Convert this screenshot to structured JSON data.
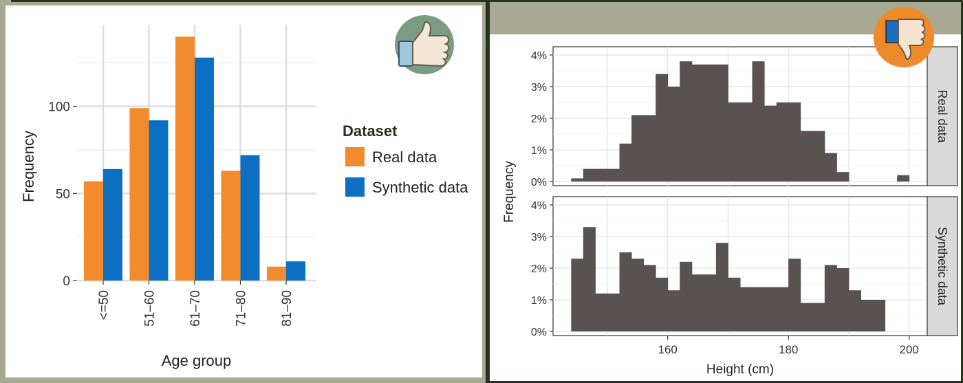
{
  "left_chart": {
    "chart_data": {
      "type": "bar",
      "categories": [
        "<=50",
        "51–60",
        "61–70",
        "71–80",
        "81–90"
      ],
      "series": [
        {
          "name": "Real data",
          "values": [
            57,
            99,
            140,
            63,
            8
          ],
          "color": "#f28a2e"
        },
        {
          "name": "Synthetic data",
          "values": [
            64,
            92,
            128,
            72,
            11
          ],
          "color": "#0d6fc2"
        }
      ],
      "xlabel": "Age group",
      "ylabel": "Frequency",
      "ylim": [
        0,
        150
      ],
      "yticks": [
        0,
        50,
        100
      ],
      "legend_title": "Dataset",
      "legend_position": "right",
      "grid": true
    },
    "badge_icon": "thumbs-up-icon"
  },
  "right_chart": {
    "chart_data": {
      "type": "bar",
      "subtype": "histogram",
      "xlabel": "Height (cm)",
      "ylabel": "Frequency",
      "xlim": [
        141,
        203
      ],
      "xticks": [
        160,
        180,
        200
      ],
      "ylim": [
        0,
        4
      ],
      "yticks": [
        "0%",
        "1%",
        "2%",
        "3%",
        "4%"
      ],
      "facets": [
        {
          "name": "Real data",
          "bin_starts": [
            144,
            146,
            148,
            150,
            152,
            154,
            156,
            158,
            160,
            162,
            164,
            166,
            168,
            170,
            172,
            174,
            176,
            178,
            180,
            182,
            184,
            186,
            188,
            190,
            192,
            194,
            196,
            198
          ],
          "values": [
            0.1,
            0.4,
            0.4,
            0.4,
            1.2,
            2.1,
            2.1,
            3.4,
            3.0,
            3.8,
            3.7,
            3.7,
            3.7,
            2.5,
            2.5,
            3.8,
            2.4,
            2.5,
            2.5,
            1.6,
            1.6,
            0.9,
            0.3,
            0,
            0,
            0,
            0,
            0.2
          ]
        },
        {
          "name": "Synthetic data",
          "bin_starts": [
            144,
            146,
            148,
            150,
            152,
            154,
            156,
            158,
            160,
            162,
            164,
            166,
            168,
            170,
            172,
            174,
            176,
            178,
            180,
            182,
            184,
            186,
            188,
            190,
            192,
            194
          ],
          "values": [
            2.3,
            3.3,
            1.2,
            1.2,
            2.5,
            2.3,
            2.1,
            1.7,
            1.3,
            2.2,
            1.8,
            1.8,
            2.8,
            1.7,
            1.4,
            1.4,
            1.4,
            1.4,
            2.3,
            0.9,
            0.9,
            2.1,
            2.0,
            1.3,
            1.0,
            1.0
          ]
        }
      ],
      "bin_width": 2,
      "bar_color": "#5a5250",
      "grid": true
    },
    "badge_icon": "thumbs-down-icon"
  }
}
